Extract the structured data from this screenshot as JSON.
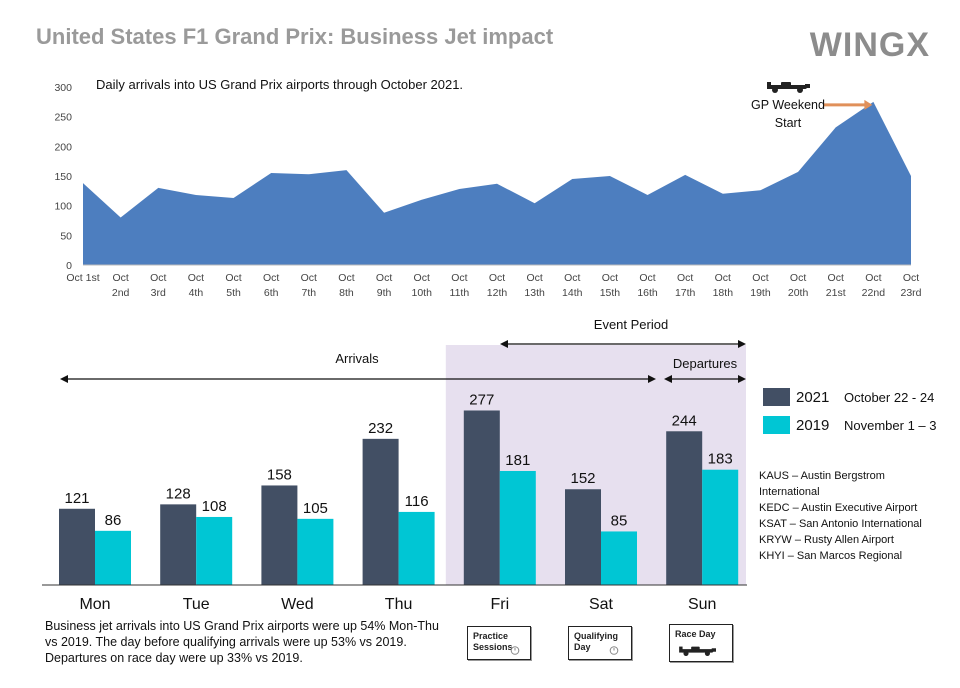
{
  "header": {
    "title": "United States F1 Grand Prix: Business Jet impact",
    "brand": "WINGX"
  },
  "chart_data": [
    {
      "type": "area",
      "title": "Daily arrivals into US Grand Prix airports through October 2021.",
      "x": [
        [
          "Oct 1st"
        ],
        [
          "Oct",
          "2nd"
        ],
        [
          "Oct",
          "3rd"
        ],
        [
          "Oct",
          "4th"
        ],
        [
          "Oct",
          "5th"
        ],
        [
          "Oct",
          "6th"
        ],
        [
          "Oct",
          "7th"
        ],
        [
          "Oct",
          "8th"
        ],
        [
          "Oct",
          "9th"
        ],
        [
          "Oct",
          "10th"
        ],
        [
          "Oct",
          "11th"
        ],
        [
          "Oct",
          "12th"
        ],
        [
          "Oct",
          "13th"
        ],
        [
          "Oct",
          "14th"
        ],
        [
          "Oct",
          "15th"
        ],
        [
          "Oct",
          "16th"
        ],
        [
          "Oct",
          "17th"
        ],
        [
          "Oct",
          "18th"
        ],
        [
          "Oct",
          "19th"
        ],
        [
          "Oct",
          "20th"
        ],
        [
          "Oct",
          "21st"
        ],
        [
          "Oct",
          "22nd"
        ],
        [
          "Oct",
          "23rd"
        ]
      ],
      "values": [
        138,
        80,
        130,
        118,
        113,
        155,
        153,
        160,
        88,
        110,
        128,
        137,
        104,
        145,
        150,
        118,
        152,
        120,
        126,
        157,
        232,
        275,
        150
      ],
      "yticks": [
        "0",
        "50",
        "100",
        "150",
        "200",
        "250",
        "300"
      ],
      "ylim": [
        0,
        300
      ],
      "color": "#4d7ebf",
      "annotation": {
        "line1": "GP Weekend",
        "line2": "Start",
        "x_index": 21,
        "arrow_color": "#e0905a"
      }
    },
    {
      "type": "bar",
      "categories": [
        "Mon",
        "Tue",
        "Wed",
        "Thu",
        "Fri",
        "Sat",
        "Sun"
      ],
      "series": [
        {
          "name": "2021",
          "values": [
            121,
            128,
            158,
            232,
            277,
            152,
            244
          ],
          "color": "#424f64"
        },
        {
          "name": "2019",
          "values": [
            86,
            108,
            105,
            116,
            181,
            85,
            183
          ],
          "color": "#00c6d4"
        }
      ],
      "ylim": [
        0,
        300
      ],
      "shaded_from_category": 4,
      "shade_color": "#e7e0ef",
      "ranges": {
        "arrivals": {
          "label": "Arrivals",
          "from": 0,
          "to": 5
        },
        "event": {
          "label": "Event Period",
          "from": 4,
          "to": 6
        },
        "departures": {
          "label": "Departures",
          "from": 6,
          "to": 6
        }
      }
    }
  ],
  "legend": [
    {
      "year": "2021",
      "dates": "October 22 - 24",
      "color": "#424f64"
    },
    {
      "year": "2019",
      "dates": "November  1 – 3",
      "color": "#00c6d4"
    }
  ],
  "airports": [
    "KAUS – Austin Bergstrom",
    "International",
    "KEDC – Austin Executive Airport",
    "KSAT – San Antonio International",
    "KRYW – Rusty Allen Airport",
    "KHYI – San Marcos Regional"
  ],
  "badges": [
    {
      "line1": "Practice",
      "line2": "Sessions",
      "icon": "stopwatch-icon"
    },
    {
      "line1": "Qualifying",
      "line2": "Day",
      "icon": "stopwatch-icon"
    },
    {
      "line1": "Race Day",
      "line2": "",
      "icon": "race-car-icon"
    }
  ],
  "notes": "Business jet arrivals into US Grand Prix airports were up 54% Mon-Thu vs 2019. The day before qualifying arrivals were up 53% vs 2019. Departures on race day were up 33% vs 2019."
}
